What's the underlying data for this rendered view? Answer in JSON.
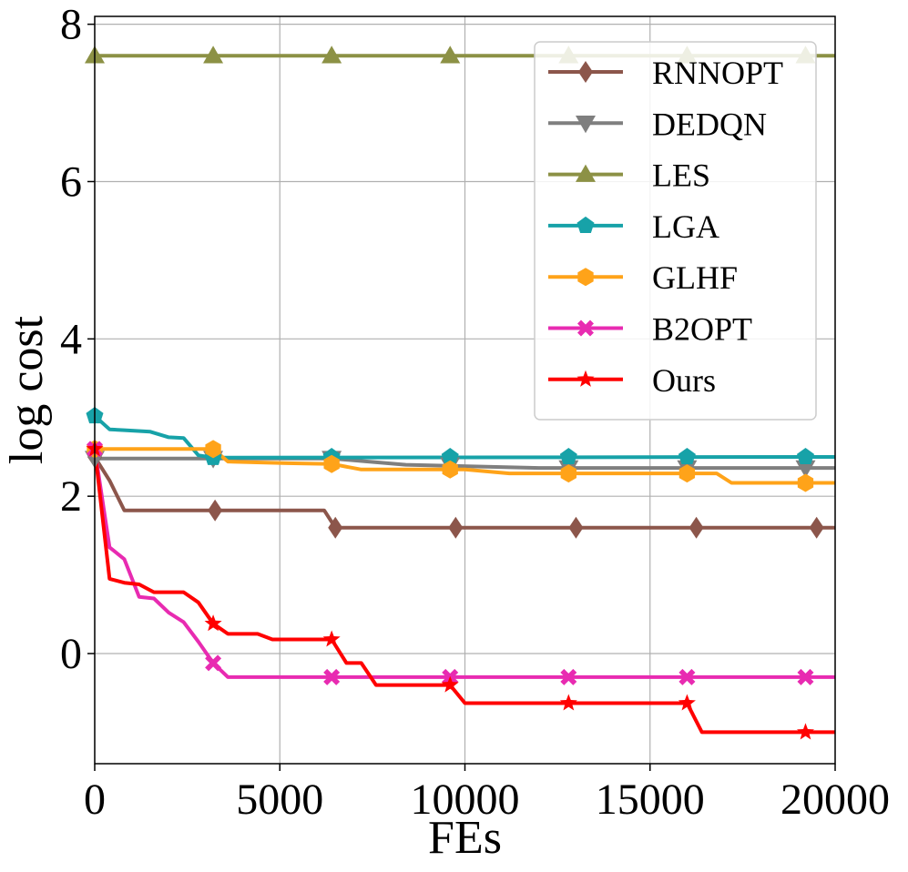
{
  "chart_data": {
    "type": "line",
    "xlabel": "FEs",
    "ylabel": "log cost",
    "xlim": [
      0,
      20000
    ],
    "ylim": [
      -1.4,
      8.1
    ],
    "xticks": [
      0,
      5000,
      10000,
      15000,
      20000
    ],
    "xtick_labels": [
      "0",
      "5000",
      "10000",
      "15000",
      "20000"
    ],
    "yticks": [
      0,
      2,
      4,
      6,
      8
    ],
    "ytick_labels": [
      "0",
      "2",
      "4",
      "6",
      "8"
    ],
    "grid": true,
    "legend_position": "top-right",
    "series": [
      {
        "name": "RNNOPT",
        "color": "#8c564b",
        "marker": "diamond",
        "x": [
          0,
          400,
          800,
          3200,
          6200,
          6500,
          20000
        ],
        "y": [
          2.5,
          2.2,
          1.82,
          1.82,
          1.82,
          1.6,
          1.6
        ],
        "marker_x": [
          0,
          3250,
          6500,
          9750,
          13000,
          16250,
          19500
        ],
        "marker_y": [
          2.5,
          1.82,
          1.6,
          1.6,
          1.6,
          1.6,
          1.6
        ]
      },
      {
        "name": "DEDQN",
        "color": "#7f7f7f",
        "marker": "triangle-down",
        "x": [
          0,
          6400,
          8400,
          12000,
          20000
        ],
        "y": [
          2.48,
          2.48,
          2.4,
          2.36,
          2.36
        ],
        "marker_x": [
          0,
          3200,
          6400,
          9600,
          12800,
          16000,
          19200
        ],
        "marker_y": [
          2.48,
          2.48,
          2.48,
          2.4,
          2.36,
          2.36,
          2.36
        ]
      },
      {
        "name": "LES",
        "color": "#8c9145",
        "marker": "triangle-up",
        "x": [
          0,
          20000
        ],
        "y": [
          7.6,
          7.6
        ],
        "marker_x": [
          0,
          3200,
          6400,
          9600,
          12800,
          16000,
          19200
        ],
        "marker_y": [
          7.6,
          7.6,
          7.6,
          7.6,
          7.6,
          7.6,
          7.6
        ]
      },
      {
        "name": "LGA",
        "color": "#17a2a8",
        "marker": "pentagon",
        "x": [
          0,
          400,
          800,
          1500,
          2000,
          2400,
          2800,
          3200,
          20000
        ],
        "y": [
          3.02,
          2.85,
          2.84,
          2.82,
          2.75,
          2.74,
          2.52,
          2.49,
          2.5
        ],
        "marker_x": [
          0,
          3200,
          6400,
          9600,
          12800,
          16000,
          19200
        ],
        "marker_y": [
          3.02,
          2.49,
          2.5,
          2.5,
          2.5,
          2.5,
          2.5
        ]
      },
      {
        "name": "GLHF",
        "color": "#ffa319",
        "marker": "hexagon",
        "x": [
          0,
          3200,
          3600,
          5200,
          6400,
          7200,
          10000,
          11200,
          16800,
          17200,
          20000
        ],
        "y": [
          2.6,
          2.6,
          2.44,
          2.42,
          2.41,
          2.34,
          2.34,
          2.29,
          2.29,
          2.17,
          2.17
        ],
        "marker_x": [
          0,
          3200,
          6400,
          9600,
          12800,
          16000,
          19200
        ],
        "marker_y": [
          2.6,
          2.6,
          2.41,
          2.34,
          2.29,
          2.29,
          2.17
        ],
        "marker_values_note": ""
      },
      {
        "name": "B2OPT",
        "color": "#e82bb1",
        "marker": "x-filled",
        "x": [
          0,
          400,
          800,
          1200,
          1600,
          2000,
          2400,
          2800,
          3200,
          3600,
          20000
        ],
        "y": [
          2.6,
          1.35,
          1.2,
          0.72,
          0.7,
          0.52,
          0.4,
          0.15,
          -0.12,
          -0.3,
          -0.3
        ],
        "marker_x": [
          0,
          3200,
          6400,
          9600,
          12800,
          16000,
          19200
        ],
        "marker_y": [
          2.6,
          -0.12,
          -0.3,
          -0.3,
          -0.3,
          -0.3,
          -0.3
        ]
      },
      {
        "name": "Ours",
        "color": "#ff0000",
        "marker": "star",
        "x": [
          0,
          400,
          800,
          1200,
          1600,
          2400,
          2800,
          3200,
          3600,
          4400,
          4800,
          6400,
          6800,
          7200,
          7600,
          9600,
          10000,
          16000,
          16400,
          20000
        ],
        "y": [
          2.6,
          0.95,
          0.9,
          0.88,
          0.78,
          0.78,
          0.65,
          0.38,
          0.25,
          0.25,
          0.18,
          0.18,
          -0.12,
          -0.12,
          -0.4,
          -0.4,
          -0.63,
          -0.63,
          -1.0,
          -1.0
        ],
        "marker_x": [
          0,
          3200,
          6400,
          9600,
          12800,
          16000,
          19200
        ],
        "marker_y": [
          2.6,
          0.38,
          0.18,
          -0.4,
          -0.63,
          -0.63,
          -1.0
        ]
      }
    ]
  }
}
